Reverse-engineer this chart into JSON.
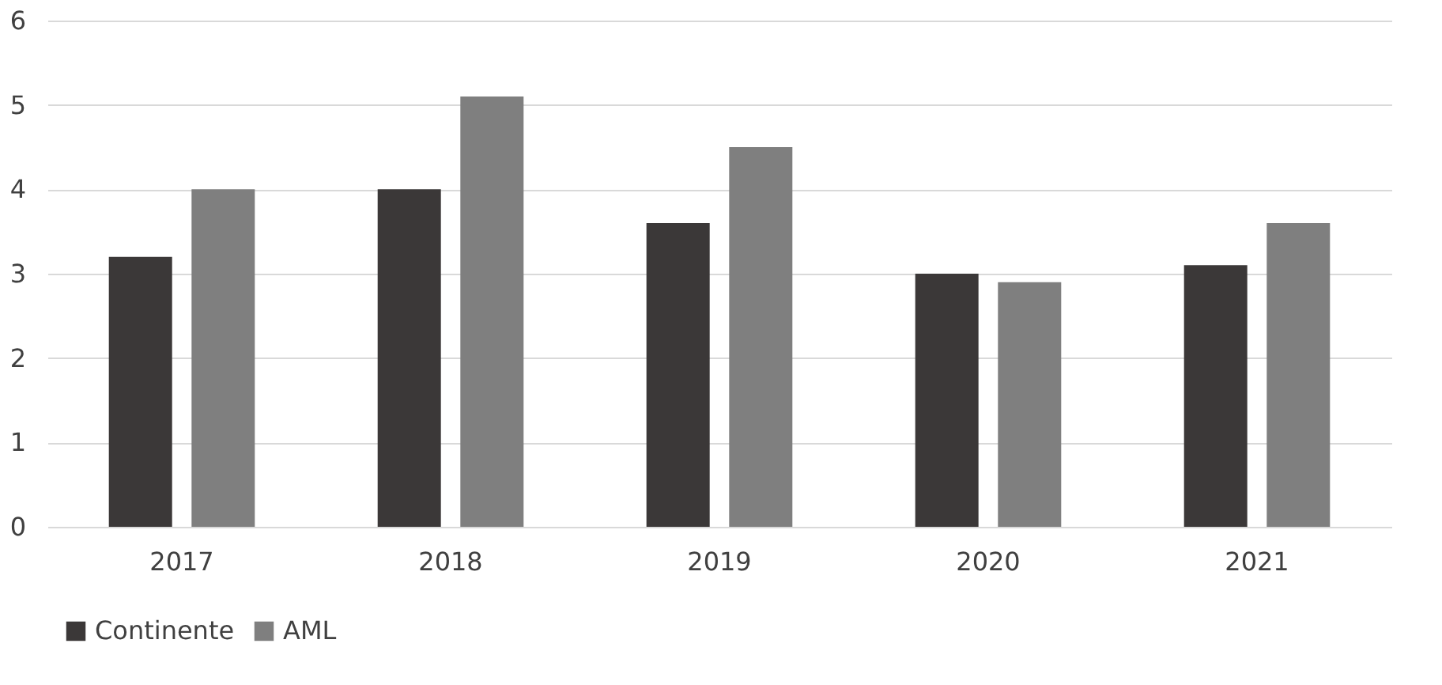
{
  "chart_data": {
    "type": "bar",
    "categories": [
      "2017",
      "2018",
      "2019",
      "2020",
      "2021"
    ],
    "series": [
      {
        "name": "Continente",
        "color": "#3b3838",
        "values": [
          3.2,
          4.0,
          3.6,
          3.0,
          3.1
        ]
      },
      {
        "name": "AML",
        "color": "#7f7f7f",
        "values": [
          4.0,
          5.1,
          4.5,
          2.9,
          3.6
        ]
      }
    ],
    "ylim": [
      0,
      6
    ],
    "yticks": [
      0,
      1,
      2,
      3,
      4,
      5,
      6
    ],
    "grid": "y",
    "legend": "bottom"
  }
}
